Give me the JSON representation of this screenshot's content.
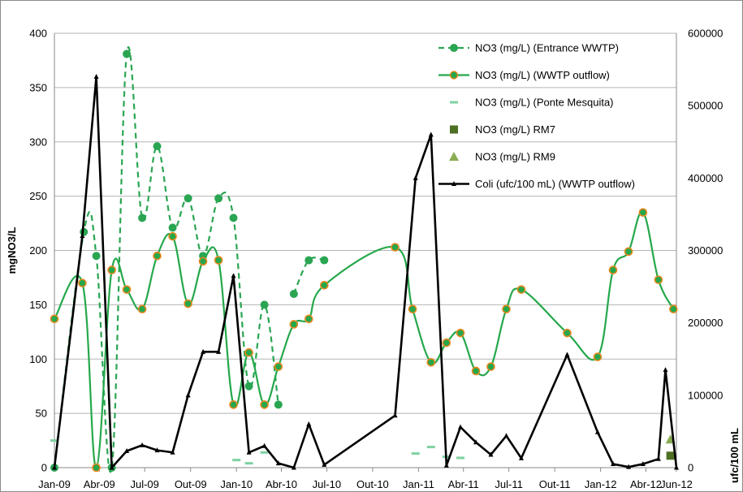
{
  "chart_data": {
    "type": "line",
    "ylabel": "mgNO3/L",
    "y2label": "ufc/100 mL",
    "ylim": [
      0,
      400
    ],
    "y2lim": [
      0,
      600000
    ],
    "yticks": [
      0,
      50,
      100,
      150,
      200,
      250,
      300,
      350,
      400
    ],
    "y2ticks": [
      0,
      100000,
      200000,
      300000,
      400000,
      500000,
      600000
    ],
    "y2tick_labels": [
      "0",
      "100000",
      "200000",
      "300000",
      "400000",
      "500000",
      "600000"
    ],
    "xlim": [
      "2009-01",
      "2012-06"
    ],
    "xticks": [
      "2009-01",
      "2009-04",
      "2009-07",
      "2009-10",
      "2010-01",
      "2010-04",
      "2010-07",
      "2010-10",
      "2011-01",
      "2011-04",
      "2011-07",
      "2011-10",
      "2012-01",
      "2012-04",
      "2012-06"
    ],
    "xtick_labels": [
      "Jan-09",
      "Abr-09",
      "Jul-09",
      "Out-09",
      "Jan-10",
      "Abr-10",
      "Jul-10",
      "Out-10",
      "Jan-11",
      "Abr-11",
      "Jul-11",
      "Out-11",
      "Jan-12",
      "Abr-12",
      "Jun-12"
    ],
    "grid": "horizontal",
    "legend_position": "top-right",
    "colors": {
      "entrance": "#2aa552",
      "outflow": "#25a84b",
      "outflow_marker_edge": "#e8871e",
      "ponte": "#7fd1a0",
      "rm7": "#4f6f24",
      "rm9": "#8aac54",
      "coli": "#000000",
      "grid": "#b5b5b5",
      "frame": "#8a8a8a"
    },
    "series": [
      {
        "name": "NO3 (mg/L) (Entrance WWTP)",
        "axis": "left",
        "style": "dashed-dot",
        "segments": [
          [
            [
              "2009-01-01",
              0
            ],
            [
              "2009-03-01",
              217
            ],
            [
              "2009-03-26",
              195
            ],
            [
              "2009-04-26",
              0
            ],
            [
              "2009-05-26",
              381
            ],
            [
              "2009-06-26",
              230
            ],
            [
              "2009-07-26",
              296
            ],
            [
              "2009-08-26",
              221
            ],
            [
              "2009-09-26",
              248
            ],
            [
              "2009-10-26",
              195
            ],
            [
              "2009-11-26",
              248
            ],
            [
              "2009-12-26",
              230
            ],
            [
              "2010-01-26",
              75
            ],
            [
              "2010-02-26",
              150
            ],
            [
              "2010-03-26",
              58
            ]
          ],
          [
            [
              "2010-04-26",
              160
            ],
            [
              "2010-05-26",
              191
            ],
            [
              "2010-06-26",
              191
            ]
          ]
        ]
      },
      {
        "name": "NO3 (mg/L) (WWTP outflow)",
        "axis": "left",
        "style": "smooth-dot",
        "points": [
          [
            "2009-01-01",
            137
          ],
          [
            "2009-02-26",
            170
          ],
          [
            "2009-03-26",
            0
          ],
          [
            "2009-04-26",
            182
          ],
          [
            "2009-05-26",
            164
          ],
          [
            "2009-06-26",
            146
          ],
          [
            "2009-07-26",
            195
          ],
          [
            "2009-08-26",
            213
          ],
          [
            "2009-09-26",
            151
          ],
          [
            "2009-10-26",
            190
          ],
          [
            "2009-11-26",
            191
          ],
          [
            "2009-12-26",
            58
          ],
          [
            "2010-01-26",
            106
          ],
          [
            "2010-02-26",
            58
          ],
          [
            "2010-03-26",
            93
          ],
          [
            "2010-04-26",
            132
          ],
          [
            "2010-05-26",
            137
          ],
          [
            "2010-06-26",
            168
          ],
          [
            "2010-11-15",
            203
          ],
          [
            "2010-12-20",
            146
          ],
          [
            "2011-01-26",
            97
          ],
          [
            "2011-02-26",
            115
          ],
          [
            "2011-03-26",
            124
          ],
          [
            "2011-04-26",
            89
          ],
          [
            "2011-05-26",
            93
          ],
          [
            "2011-06-26",
            146
          ],
          [
            "2011-07-26",
            164
          ],
          [
            "2011-10-26",
            124
          ],
          [
            "2011-12-26",
            102
          ],
          [
            "2012-01-26",
            182
          ],
          [
            "2012-02-26",
            199
          ],
          [
            "2012-03-26",
            235
          ],
          [
            "2012-04-26",
            173
          ],
          [
            "2012-05-26",
            146
          ]
        ]
      },
      {
        "name": "NO3 (mg/L) (Ponte Mesquita)",
        "axis": "left",
        "style": "dash-marker",
        "points": [
          [
            "2009-01-01",
            25
          ],
          [
            "2010-01-01",
            7
          ],
          [
            "2010-01-26",
            4
          ],
          [
            "2010-02-26",
            14
          ],
          [
            "2010-12-26",
            13
          ],
          [
            "2011-01-26",
            19
          ],
          [
            "2011-02-26",
            10
          ],
          [
            "2011-03-26",
            9
          ]
        ]
      },
      {
        "name": "NO3 (mg/L) RM7",
        "axis": "left",
        "style": "square-marker",
        "points": [
          [
            "2012-05-20",
            11
          ]
        ]
      },
      {
        "name": "NO3 (mg/L) RM9",
        "axis": "left",
        "style": "triangle-marker",
        "points": [
          [
            "2012-05-20",
            26
          ]
        ]
      },
      {
        "name": "Coli (ufc/100 mL) (WWTP outflow)",
        "axis": "right",
        "style": "line-triangle",
        "points": [
          [
            "2009-01-01",
            0
          ],
          [
            "2009-02-26",
            320000
          ],
          [
            "2009-03-26",
            540000
          ],
          [
            "2009-04-26",
            0
          ],
          [
            "2009-05-26",
            23000
          ],
          [
            "2009-06-26",
            31000
          ],
          [
            "2009-07-26",
            24000
          ],
          [
            "2009-08-26",
            21000
          ],
          [
            "2009-09-26",
            100000
          ],
          [
            "2009-10-26",
            160000
          ],
          [
            "2009-11-26",
            160000
          ],
          [
            "2009-12-26",
            265000
          ],
          [
            "2010-01-26",
            21000
          ],
          [
            "2010-02-26",
            30000
          ],
          [
            "2010-03-26",
            6000
          ],
          [
            "2010-04-26",
            0
          ],
          [
            "2010-05-26",
            60000
          ],
          [
            "2010-06-26",
            4000
          ],
          [
            "2010-11-15",
            72000
          ],
          [
            "2010-12-26",
            400000
          ],
          [
            "2011-01-26",
            460000
          ],
          [
            "2011-02-26",
            3000
          ],
          [
            "2011-03-26",
            56000
          ],
          [
            "2011-04-26",
            35000
          ],
          [
            "2011-05-26",
            18000
          ],
          [
            "2011-06-26",
            44000
          ],
          [
            "2011-07-26",
            13000
          ],
          [
            "2011-10-26",
            156000
          ],
          [
            "2011-12-26",
            49000
          ],
          [
            "2012-01-26",
            5000
          ],
          [
            "2012-02-26",
            1000
          ],
          [
            "2012-03-26",
            5000
          ],
          [
            "2012-04-26",
            12000
          ],
          [
            "2012-05-10",
            135000
          ],
          [
            "2012-06-01",
            0
          ]
        ]
      }
    ]
  }
}
